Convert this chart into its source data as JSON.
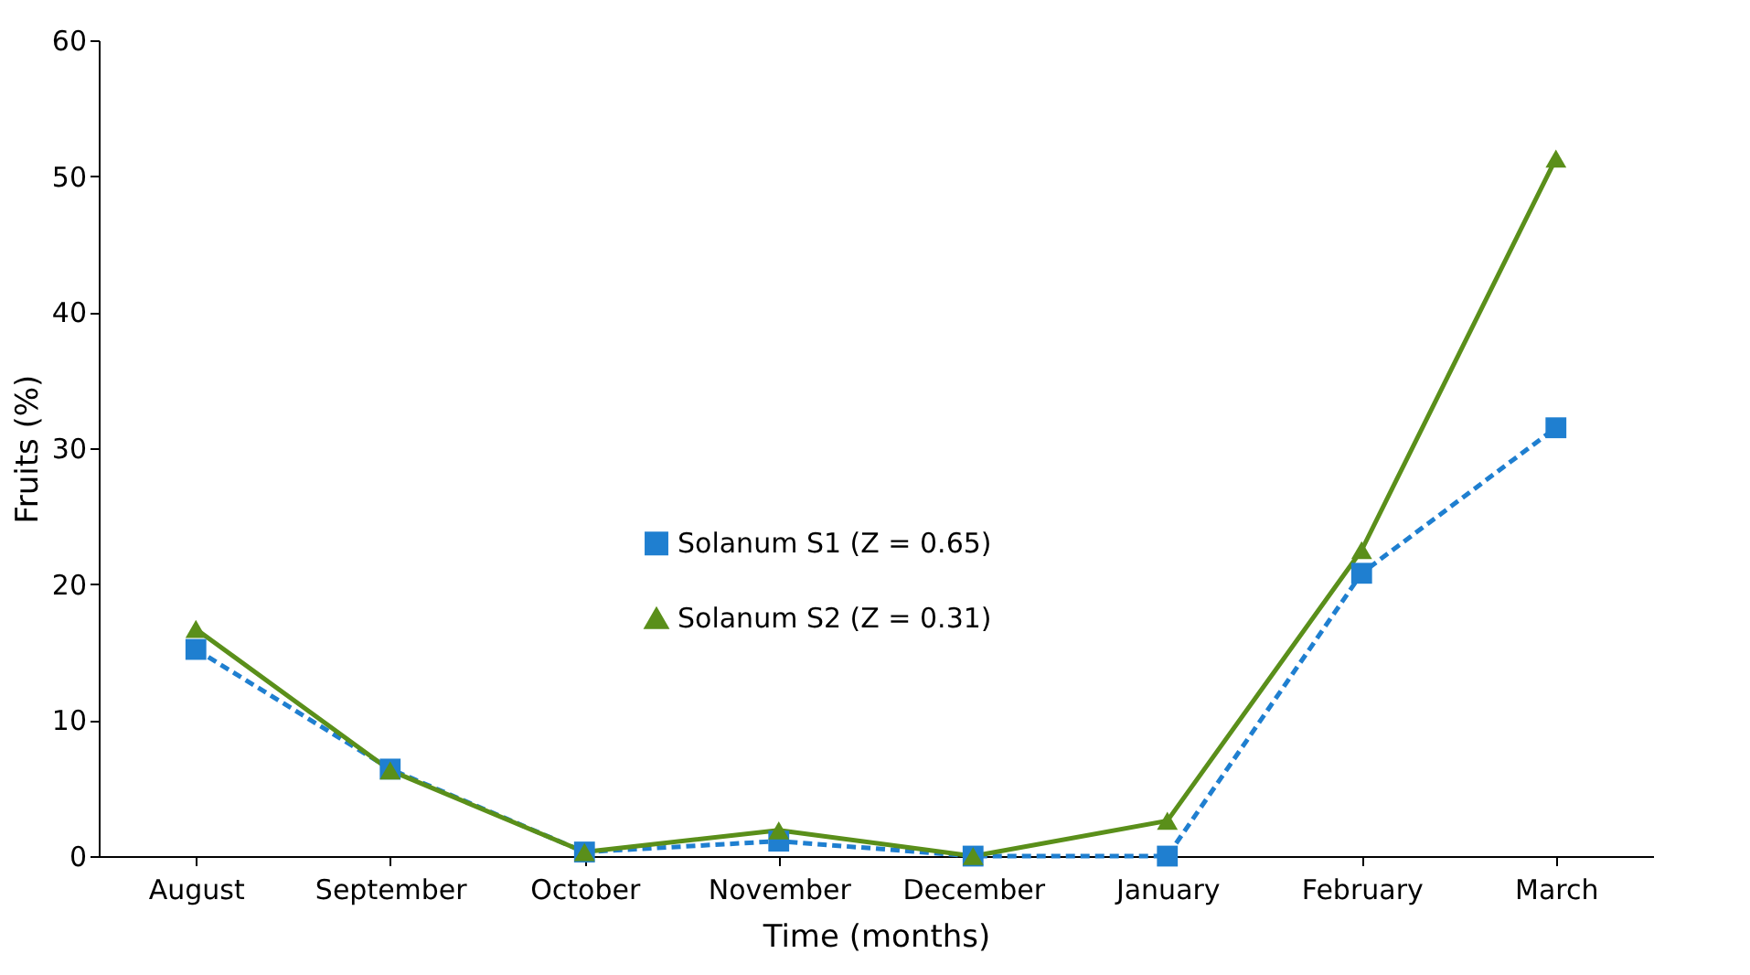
{
  "chart_data": {
    "type": "line",
    "xlabel": "Time (months)",
    "ylabel": "Fruits (%)",
    "categories": [
      "August",
      "September",
      "October",
      "November",
      "December",
      "January",
      "February",
      "March"
    ],
    "ylim": [
      0,
      60
    ],
    "yticks": [
      0,
      10,
      20,
      30,
      40,
      50,
      60
    ],
    "grid": false,
    "legend": "center",
    "series": [
      {
        "name": "Solanum S1 (Z = 0.65)",
        "color": "#1f7fd0",
        "marker": "square",
        "line_style": "dashed",
        "values": [
          15.2,
          6.4,
          0.3,
          1.1,
          0,
          0,
          20.8,
          31.5
        ]
      },
      {
        "name": "Solanum S2 (Z = 0.31)",
        "color": "#5a8f1a",
        "marker": "triangle",
        "line_style": "solid",
        "values": [
          16.7,
          6.3,
          0.3,
          1.9,
          0,
          2.6,
          22.5,
          51.3
        ]
      }
    ]
  }
}
